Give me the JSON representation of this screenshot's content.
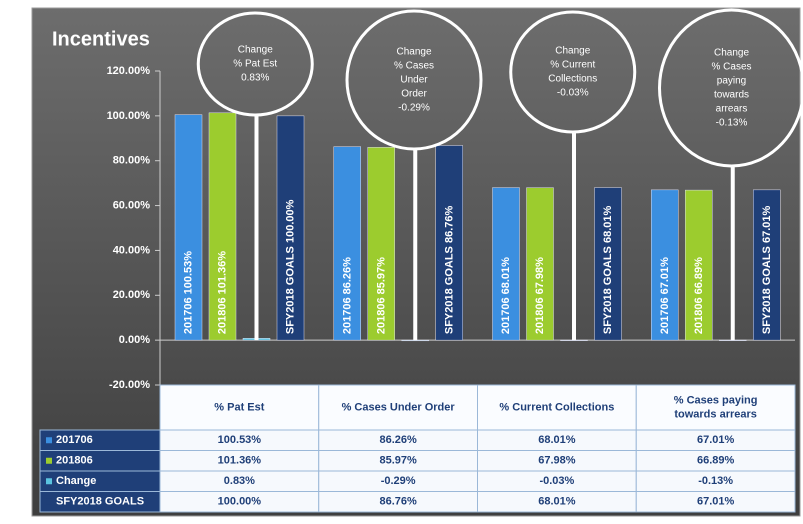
{
  "chart_data": {
    "type": "bar",
    "title": "Incentives",
    "categories": [
      "% Pat Est",
      "% Cases Under Order",
      "% Current Collections",
      "% Cases paying towards arrears"
    ],
    "series": [
      {
        "name": "201706",
        "color": "#3b8fe0",
        "values": [
          100.53,
          86.26,
          68.01,
          67.01
        ],
        "value_labels": [
          "100.53%",
          "86.26%",
          "68.01%",
          "67.01%"
        ]
      },
      {
        "name": "201806",
        "color": "#9ccc2e",
        "values": [
          101.36,
          85.97,
          67.98,
          66.89
        ],
        "value_labels": [
          "101.36%",
          "85.97%",
          "67.98%",
          "66.89%"
        ]
      },
      {
        "name": "Change",
        "color": "#5bc4e0",
        "values": [
          0.83,
          -0.29,
          -0.03,
          -0.13
        ],
        "value_labels": [
          "0.83%",
          "-0.29%",
          "-0.03%",
          "-0.13%"
        ]
      },
      {
        "name": "SFY2018 GOALS",
        "color": "#1f3f78",
        "values": [
          100.0,
          86.76,
          68.01,
          67.01
        ],
        "value_labels": [
          "100.00%",
          "86.76%",
          "68.01%",
          "67.01%"
        ]
      }
    ],
    "ylim": [
      -20,
      120
    ],
    "yticks": [
      {
        "value": -20,
        "label": "-20.00%"
      },
      {
        "value": 0,
        "label": "0.00%"
      },
      {
        "value": 20,
        "label": "20.00%"
      },
      {
        "value": 40,
        "label": "40.00%"
      },
      {
        "value": 60,
        "label": "60.00%"
      },
      {
        "value": 80,
        "label": "80.00%"
      },
      {
        "value": 100,
        "label": "100.00%"
      },
      {
        "value": 120,
        "label": "120.00%"
      }
    ],
    "annotations": [
      [
        "% Pat Est"
      ],
      [
        "% Cases",
        "Under",
        "Order"
      ],
      [
        "% Current",
        "Collections"
      ],
      [
        "% Cases",
        "paying",
        "towards",
        "arrears"
      ]
    ],
    "table_header_lines": [
      [
        "% Pat Est"
      ],
      [
        "% Cases Under Order"
      ],
      [
        "% Current Collections"
      ],
      [
        "% Cases paying",
        "towards arrears"
      ]
    ]
  }
}
